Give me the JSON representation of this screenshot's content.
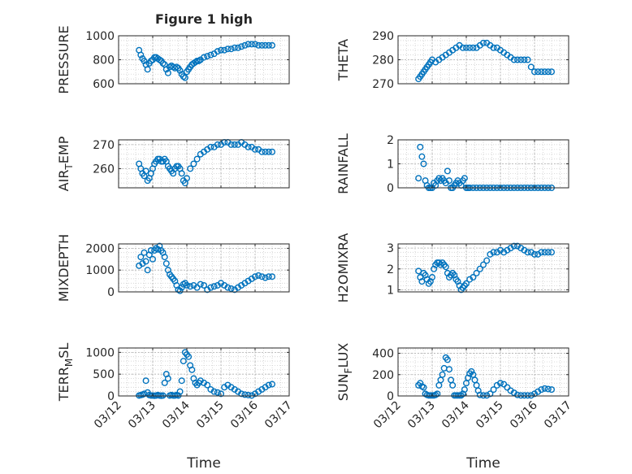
{
  "title": "Figure 1 high",
  "xlabel": "Time",
  "x_tick_labels": [
    "03/12",
    "03/13",
    "03/14",
    "03/15",
    "03/16",
    "03/17"
  ],
  "marker_color": "#0072BD",
  "axes_color": "#262626",
  "grid_color": "#c8c8c8",
  "chart_data": [
    {
      "type": "scatter",
      "ylabel": "PRESSURE",
      "ylim": [
        600,
        1000
      ],
      "yticks": [
        600,
        800,
        1000
      ],
      "xlim": [
        0,
        5
      ],
      "grid": true,
      "x": [
        0.6,
        0.65,
        0.7,
        0.75,
        0.8,
        0.85,
        0.9,
        0.95,
        1.0,
        1.05,
        1.1,
        1.15,
        1.2,
        1.25,
        1.3,
        1.35,
        1.4,
        1.45,
        1.5,
        1.55,
        1.6,
        1.65,
        1.7,
        1.75,
        1.8,
        1.85,
        1.9,
        1.95,
        2.0,
        2.05,
        2.1,
        2.15,
        2.2,
        2.25,
        2.3,
        2.35,
        2.4,
        2.5,
        2.6,
        2.7,
        2.8,
        2.9,
        3.0,
        3.1,
        3.2,
        3.3,
        3.4,
        3.5,
        3.6,
        3.7,
        3.8,
        3.9,
        4.0,
        4.1,
        4.2,
        4.3,
        4.4,
        4.5
      ],
      "y": [
        880,
        840,
        810,
        790,
        760,
        720,
        770,
        790,
        800,
        820,
        820,
        810,
        800,
        790,
        770,
        760,
        720,
        690,
        740,
        750,
        740,
        730,
        740,
        730,
        710,
        680,
        660,
        650,
        700,
        720,
        740,
        760,
        770,
        780,
        790,
        790,
        800,
        820,
        830,
        840,
        850,
        870,
        880,
        880,
        890,
        890,
        900,
        900,
        910,
        920,
        930,
        930,
        930,
        920,
        920,
        920,
        920,
        920
      ]
    },
    {
      "type": "scatter",
      "ylabel": "THETA",
      "ylim": [
        270,
        290
      ],
      "yticks": [
        270,
        280,
        290
      ],
      "xlim": [
        0,
        5
      ],
      "grid": true,
      "x": [
        0.6,
        0.65,
        0.7,
        0.75,
        0.8,
        0.85,
        0.9,
        0.95,
        1.0,
        1.1,
        1.2,
        1.3,
        1.4,
        1.5,
        1.6,
        1.7,
        1.8,
        1.9,
        2.0,
        2.1,
        2.2,
        2.3,
        2.4,
        2.5,
        2.6,
        2.7,
        2.8,
        2.9,
        3.0,
        3.1,
        3.2,
        3.3,
        3.4,
        3.5,
        3.6,
        3.7,
        3.8,
        3.9,
        4.0,
        4.1,
        4.2,
        4.3,
        4.4,
        4.5
      ],
      "y": [
        272,
        273,
        274,
        275,
        276,
        277,
        278,
        279,
        280,
        279,
        280,
        281,
        282,
        283,
        284,
        285,
        286,
        285,
        285,
        285,
        285,
        285,
        286,
        287,
        287,
        286,
        285,
        285,
        284,
        283,
        282,
        281,
        280,
        280,
        280,
        280,
        280,
        277,
        275,
        275,
        275,
        275,
        275,
        275
      ]
    },
    {
      "type": "scatter",
      "ylabel": "AIR_TEMP",
      "ylim": [
        252,
        272
      ],
      "yticks": [
        260,
        270
      ],
      "xlim": [
        0,
        5
      ],
      "grid": true,
      "x": [
        0.6,
        0.65,
        0.7,
        0.75,
        0.8,
        0.85,
        0.9,
        0.95,
        1.0,
        1.05,
        1.1,
        1.15,
        1.2,
        1.25,
        1.3,
        1.35,
        1.4,
        1.45,
        1.5,
        1.55,
        1.6,
        1.65,
        1.7,
        1.75,
        1.8,
        1.85,
        1.9,
        1.95,
        2.0,
        2.1,
        2.2,
        2.3,
        2.4,
        2.5,
        2.6,
        2.7,
        2.8,
        2.9,
        3.0,
        3.1,
        3.2,
        3.3,
        3.4,
        3.5,
        3.6,
        3.7,
        3.8,
        3.9,
        4.0,
        4.1,
        4.2,
        4.3,
        4.4,
        4.5
      ],
      "y": [
        262,
        260,
        258,
        257,
        259,
        255,
        256,
        258,
        260,
        262,
        263,
        264,
        264,
        263,
        263,
        264,
        263,
        261,
        260,
        259,
        258,
        260,
        261,
        261,
        260,
        258,
        255,
        254,
        256,
        260,
        262,
        264,
        266,
        267,
        268,
        269,
        269,
        270,
        270,
        271,
        271,
        270,
        270,
        270,
        271,
        270,
        269,
        269,
        268,
        268,
        267,
        267,
        267,
        267
      ]
    },
    {
      "type": "scatter",
      "ylabel": "RAINFALL",
      "ylim": [
        0,
        2
      ],
      "yticks": [
        0,
        1,
        2
      ],
      "xlim": [
        0,
        5
      ],
      "grid": true,
      "x": [
        0.6,
        0.65,
        0.7,
        0.75,
        0.8,
        0.85,
        0.9,
        0.95,
        1.0,
        1.05,
        1.1,
        1.15,
        1.2,
        1.25,
        1.3,
        1.35,
        1.4,
        1.45,
        1.5,
        1.55,
        1.6,
        1.65,
        1.7,
        1.75,
        1.8,
        1.85,
        1.9,
        1.95,
        2.0,
        2.05,
        2.1,
        2.2,
        2.3,
        2.4,
        2.5,
        2.6,
        2.7,
        2.8,
        2.9,
        3.0,
        3.1,
        3.2,
        3.3,
        3.4,
        3.5,
        3.6,
        3.7,
        3.8,
        3.9,
        4.0,
        4.1,
        4.2,
        4.3,
        4.4,
        4.5
      ],
      "y": [
        0.4,
        1.7,
        1.3,
        1.0,
        0.3,
        0.1,
        0,
        0,
        0,
        0.2,
        0.1,
        0.3,
        0.4,
        0.3,
        0.4,
        0.3,
        0.2,
        0.7,
        0.3,
        0,
        0,
        0.1,
        0.2,
        0.3,
        0.2,
        0.1,
        0.3,
        0.4,
        0,
        0,
        0,
        0,
        0,
        0,
        0,
        0,
        0,
        0,
        0,
        0,
        0,
        0,
        0,
        0,
        0,
        0,
        0,
        0,
        0,
        0,
        0,
        0,
        0,
        0,
        0
      ]
    },
    {
      "type": "scatter",
      "ylabel": "MIXDEPTH",
      "ylim": [
        0,
        2200
      ],
      "yticks": [
        0,
        1000,
        2000
      ],
      "xlim": [
        0,
        5
      ],
      "grid": true,
      "x": [
        0.6,
        0.65,
        0.7,
        0.75,
        0.8,
        0.85,
        0.9,
        0.95,
        1.0,
        1.05,
        1.1,
        1.15,
        1.2,
        1.25,
        1.3,
        1.35,
        1.4,
        1.45,
        1.5,
        1.55,
        1.6,
        1.65,
        1.7,
        1.75,
        1.8,
        1.85,
        1.9,
        1.95,
        2.0,
        2.1,
        2.2,
        2.3,
        2.4,
        2.5,
        2.6,
        2.7,
        2.8,
        2.9,
        3.0,
        3.1,
        3.2,
        3.3,
        3.4,
        3.5,
        3.6,
        3.7,
        3.8,
        3.9,
        4.0,
        4.1,
        4.2,
        4.3,
        4.4,
        4.5
      ],
      "y": [
        1200,
        1600,
        1300,
        1800,
        1400,
        1000,
        1700,
        1900,
        1500,
        1900,
        2000,
        1950,
        2100,
        1900,
        1800,
        1600,
        1300,
        1000,
        800,
        700,
        600,
        500,
        300,
        100,
        50,
        200,
        350,
        400,
        300,
        250,
        300,
        200,
        350,
        300,
        100,
        200,
        250,
        300,
        400,
        300,
        200,
        150,
        100,
        200,
        300,
        400,
        500,
        600,
        700,
        750,
        700,
        650,
        700,
        700
      ]
    },
    {
      "type": "scatter",
      "ylabel": "H2OMIXRA",
      "ylim": [
        0.9,
        3.2
      ],
      "yticks": [
        1,
        2,
        3
      ],
      "xlim": [
        0,
        5
      ],
      "grid": true,
      "x": [
        0.6,
        0.65,
        0.7,
        0.75,
        0.8,
        0.85,
        0.9,
        0.95,
        1.0,
        1.05,
        1.1,
        1.15,
        1.2,
        1.25,
        1.3,
        1.35,
        1.4,
        1.45,
        1.5,
        1.55,
        1.6,
        1.65,
        1.7,
        1.75,
        1.8,
        1.85,
        1.9,
        1.95,
        2.0,
        2.1,
        2.2,
        2.3,
        2.4,
        2.5,
        2.6,
        2.7,
        2.8,
        2.9,
        3.0,
        3.1,
        3.2,
        3.3,
        3.4,
        3.5,
        3.6,
        3.7,
        3.8,
        3.9,
        4.0,
        4.1,
        4.2,
        4.3,
        4.4,
        4.5
      ],
      "y": [
        1.9,
        1.6,
        1.4,
        1.8,
        1.7,
        1.5,
        1.3,
        1.4,
        1.6,
        2.0,
        2.2,
        2.3,
        2.3,
        2.2,
        2.3,
        2.2,
        2.1,
        1.8,
        1.6,
        1.7,
        1.8,
        1.7,
        1.5,
        1.4,
        1.2,
        1.0,
        1.1,
        1.2,
        1.3,
        1.5,
        1.6,
        1.8,
        2.0,
        2.2,
        2.4,
        2.7,
        2.8,
        2.8,
        2.9,
        2.8,
        2.9,
        3.0,
        3.1,
        3.1,
        3.0,
        2.9,
        2.8,
        2.8,
        2.7,
        2.7,
        2.8,
        2.8,
        2.8,
        2.8
      ]
    },
    {
      "type": "scatter",
      "ylabel": "TERR_MSL",
      "ylim": [
        0,
        1100
      ],
      "yticks": [
        0,
        500,
        1000
      ],
      "xlim": [
        0,
        5
      ],
      "grid": true,
      "x": [
        0.6,
        0.65,
        0.7,
        0.75,
        0.8,
        0.85,
        0.9,
        0.95,
        1.0,
        1.05,
        1.1,
        1.15,
        1.2,
        1.25,
        1.3,
        1.35,
        1.4,
        1.45,
        1.5,
        1.55,
        1.6,
        1.65,
        1.7,
        1.75,
        1.8,
        1.85,
        1.9,
        1.95,
        2.0,
        2.05,
        2.1,
        2.15,
        2.2,
        2.25,
        2.3,
        2.35,
        2.4,
        2.5,
        2.6,
        2.7,
        2.8,
        2.9,
        3.0,
        3.1,
        3.2,
        3.3,
        3.4,
        3.5,
        3.6,
        3.7,
        3.8,
        3.9,
        4.0,
        4.1,
        4.2,
        4.3,
        4.4,
        4.5
      ],
      "y": [
        10,
        20,
        30,
        50,
        350,
        80,
        20,
        10,
        10,
        5,
        10,
        20,
        10,
        5,
        10,
        300,
        500,
        400,
        10,
        20,
        10,
        10,
        20,
        10,
        100,
        350,
        800,
        1000,
        950,
        900,
        700,
        600,
        400,
        300,
        250,
        300,
        350,
        300,
        250,
        150,
        100,
        80,
        50,
        200,
        250,
        200,
        150,
        100,
        50,
        30,
        20,
        10,
        50,
        100,
        150,
        200,
        250,
        270
      ]
    },
    {
      "type": "scatter",
      "ylabel": "SUN_FLUX",
      "ylim": [
        0,
        450
      ],
      "yticks": [
        0,
        200,
        400
      ],
      "xlim": [
        0,
        5
      ],
      "grid": true,
      "x": [
        0.6,
        0.65,
        0.7,
        0.75,
        0.8,
        0.85,
        0.9,
        0.95,
        1.0,
        1.05,
        1.1,
        1.15,
        1.2,
        1.25,
        1.3,
        1.35,
        1.4,
        1.45,
        1.5,
        1.55,
        1.6,
        1.65,
        1.7,
        1.75,
        1.8,
        1.85,
        1.9,
        1.95,
        2.0,
        2.05,
        2.1,
        2.15,
        2.2,
        2.25,
        2.3,
        2.35,
        2.4,
        2.5,
        2.6,
        2.7,
        2.8,
        2.9,
        3.0,
        3.1,
        3.2,
        3.3,
        3.4,
        3.5,
        3.6,
        3.7,
        3.8,
        3.9,
        4.0,
        4.1,
        4.2,
        4.3,
        4.4,
        4.5
      ],
      "y": [
        100,
        120,
        90,
        80,
        20,
        10,
        5,
        5,
        5,
        5,
        10,
        20,
        100,
        150,
        200,
        260,
        360,
        340,
        250,
        150,
        100,
        5,
        5,
        5,
        5,
        5,
        20,
        60,
        120,
        170,
        210,
        230,
        200,
        150,
        100,
        50,
        10,
        5,
        5,
        20,
        60,
        100,
        120,
        110,
        80,
        50,
        30,
        10,
        5,
        5,
        5,
        5,
        20,
        40,
        60,
        70,
        65,
        60
      ]
    }
  ]
}
